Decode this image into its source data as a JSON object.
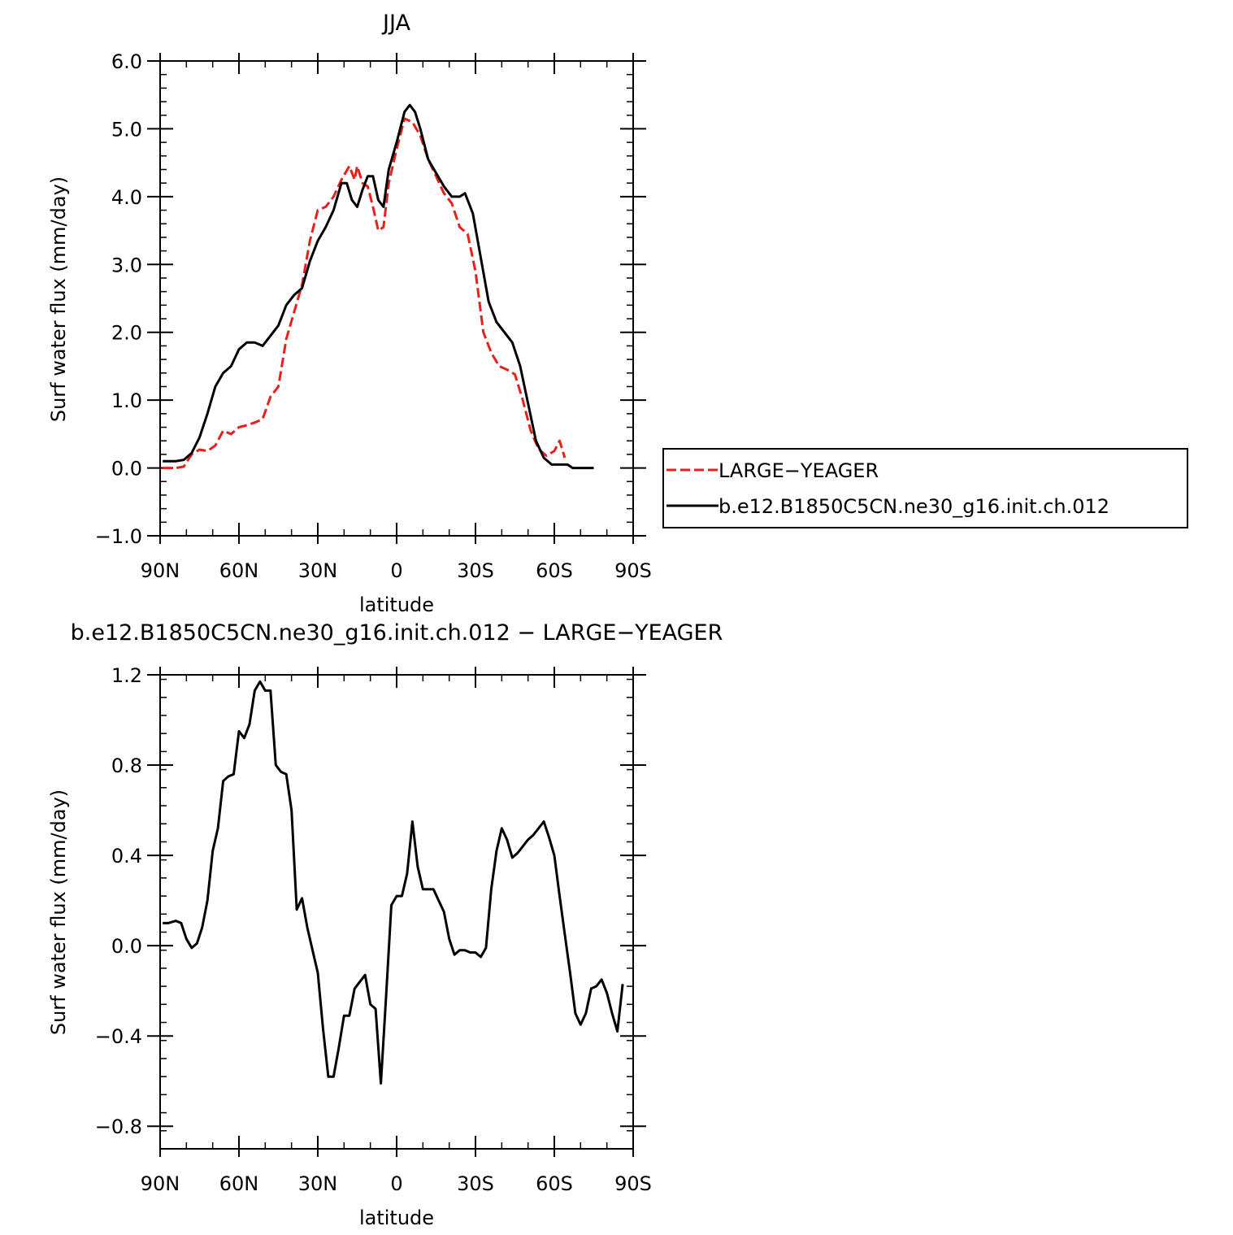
{
  "colors": {
    "red": "#e8201c",
    "black": "#000000"
  },
  "chart_data": [
    {
      "type": "line",
      "title": "JJA",
      "xlabel": "latitude",
      "ylabel": "Surf water flux (mm/day)",
      "xlim": [
        90,
        -90
      ],
      "ylim": [
        -1.0,
        6.0
      ],
      "x_ticks": [
        {
          "value": 90,
          "label": "90N"
        },
        {
          "value": 60,
          "label": "60N"
        },
        {
          "value": 30,
          "label": "30N"
        },
        {
          "value": 0,
          "label": "0"
        },
        {
          "value": -30,
          "label": "30S"
        },
        {
          "value": -60,
          "label": "60S"
        },
        {
          "value": -90,
          "label": "90S"
        }
      ],
      "y_ticks": [
        {
          "value": -1.0,
          "label": "−1.0"
        },
        {
          "value": 0.0,
          "label": "0.0"
        },
        {
          "value": 1.0,
          "label": "1.0"
        },
        {
          "value": 2.0,
          "label": "2.0"
        },
        {
          "value": 3.0,
          "label": "3.0"
        },
        {
          "value": 4.0,
          "label": "4.0"
        },
        {
          "value": 5.0,
          "label": "5.0"
        },
        {
          "value": 6.0,
          "label": "6.0"
        }
      ],
      "legend": "right",
      "series": [
        {
          "name": "LARGE−YEAGER",
          "color": "#e8201c",
          "style": "dashed",
          "points": [
            [
              89,
              0.0
            ],
            [
              84,
              0.0
            ],
            [
              81,
              0.02
            ],
            [
              78,
              0.2
            ],
            [
              75,
              0.27
            ],
            [
              72,
              0.25
            ],
            [
              69,
              0.33
            ],
            [
              66,
              0.55
            ],
            [
              63,
              0.5
            ],
            [
              60,
              0.6
            ],
            [
              57,
              0.63
            ],
            [
              54,
              0.67
            ],
            [
              51,
              0.72
            ],
            [
              48,
              1.05
            ],
            [
              45,
              1.2
            ],
            [
              42,
              1.9
            ],
            [
              39,
              2.3
            ],
            [
              36,
              2.7
            ],
            [
              33,
              3.35
            ],
            [
              30,
              3.8
            ],
            [
              27,
              3.85
            ],
            [
              24,
              4.0
            ],
            [
              21,
              4.25
            ],
            [
              18,
              4.45
            ],
            [
              16,
              4.25
            ],
            [
              15,
              4.45
            ],
            [
              13,
              4.2
            ],
            [
              11,
              4.15
            ],
            [
              9,
              3.85
            ],
            [
              7,
              3.5
            ],
            [
              5,
              3.55
            ],
            [
              3,
              4.2
            ],
            [
              0,
              4.7
            ],
            [
              -3,
              5.15
            ],
            [
              -6,
              5.1
            ],
            [
              -9,
              4.9
            ],
            [
              -12,
              4.55
            ],
            [
              -15,
              4.3
            ],
            [
              -18,
              4.05
            ],
            [
              -21,
              3.9
            ],
            [
              -24,
              3.55
            ],
            [
              -27,
              3.45
            ],
            [
              -30,
              2.9
            ],
            [
              -33,
              2.0
            ],
            [
              -36,
              1.7
            ],
            [
              -39,
              1.5
            ],
            [
              -42,
              1.45
            ],
            [
              -45,
              1.38
            ],
            [
              -48,
              1.0
            ],
            [
              -51,
              0.55
            ],
            [
              -54,
              0.28
            ],
            [
              -57,
              0.18
            ],
            [
              -60,
              0.25
            ],
            [
              -62,
              0.4
            ],
            [
              -64,
              0.15
            ]
          ]
        },
        {
          "name": "b.e12.B1850C5CN.ne30_g16.init.ch.012",
          "color": "#000000",
          "style": "solid",
          "points": [
            [
              89,
              0.1
            ],
            [
              84,
              0.1
            ],
            [
              81,
              0.12
            ],
            [
              78,
              0.22
            ],
            [
              75,
              0.45
            ],
            [
              72,
              0.8
            ],
            [
              69,
              1.2
            ],
            [
              66,
              1.4
            ],
            [
              63,
              1.5
            ],
            [
              60,
              1.75
            ],
            [
              57,
              1.85
            ],
            [
              54,
              1.85
            ],
            [
              51,
              1.8
            ],
            [
              48,
              1.95
            ],
            [
              45,
              2.1
            ],
            [
              42,
              2.4
            ],
            [
              39,
              2.55
            ],
            [
              36,
              2.65
            ],
            [
              33,
              3.05
            ],
            [
              30,
              3.35
            ],
            [
              27,
              3.55
            ],
            [
              24,
              3.8
            ],
            [
              21,
              4.2
            ],
            [
              19,
              4.2
            ],
            [
              17,
              3.95
            ],
            [
              15,
              3.85
            ],
            [
              13,
              4.1
            ],
            [
              11,
              4.3
            ],
            [
              9,
              4.3
            ],
            [
              7,
              3.95
            ],
            [
              5,
              3.85
            ],
            [
              3,
              4.4
            ],
            [
              0,
              4.8
            ],
            [
              -3,
              5.25
            ],
            [
              -5,
              5.35
            ],
            [
              -7,
              5.25
            ],
            [
              -9,
              5.0
            ],
            [
              -12,
              4.55
            ],
            [
              -15,
              4.35
            ],
            [
              -18,
              4.15
            ],
            [
              -21,
              4.0
            ],
            [
              -24,
              4.0
            ],
            [
              -26,
              4.05
            ],
            [
              -29,
              3.75
            ],
            [
              -32,
              3.1
            ],
            [
              -35,
              2.45
            ],
            [
              -38,
              2.15
            ],
            [
              -41,
              2.0
            ],
            [
              -44,
              1.85
            ],
            [
              -47,
              1.5
            ],
            [
              -50,
              0.95
            ],
            [
              -53,
              0.4
            ],
            [
              -56,
              0.15
            ],
            [
              -59,
              0.05
            ],
            [
              -62,
              0.05
            ],
            [
              -65,
              0.05
            ],
            [
              -67,
              0.0
            ],
            [
              -70,
              0.0
            ],
            [
              -73,
              0.0
            ],
            [
              -75,
              0.0
            ]
          ]
        }
      ]
    },
    {
      "type": "line",
      "title": "b.e12.B1850C5CN.ne30_g16.init.ch.012 − LARGE−YEAGER",
      "xlabel": "latitude",
      "ylabel": "Surf water flux (mm/day)",
      "xlim": [
        90,
        -90
      ],
      "ylim": [
        -0.9,
        1.2
      ],
      "x_ticks": [
        {
          "value": 90,
          "label": "90N"
        },
        {
          "value": 60,
          "label": "60N"
        },
        {
          "value": 30,
          "label": "30N"
        },
        {
          "value": 0,
          "label": "0"
        },
        {
          "value": -30,
          "label": "30S"
        },
        {
          "value": -60,
          "label": "60S"
        },
        {
          "value": -90,
          "label": "90S"
        }
      ],
      "y_ticks": [
        {
          "value": -0.8,
          "label": "−0.8"
        },
        {
          "value": -0.4,
          "label": "−0.4"
        },
        {
          "value": 0.0,
          "label": "0.0"
        },
        {
          "value": 0.4,
          "label": "0.4"
        },
        {
          "value": 0.8,
          "label": "0.8"
        },
        {
          "value": 1.2,
          "label": "1.2"
        }
      ],
      "series": [
        {
          "color": "#000000",
          "style": "solid",
          "points": [
            [
              89,
              0.1
            ],
            [
              87,
              0.1
            ],
            [
              84,
              0.11
            ],
            [
              82,
              0.1
            ],
            [
              80,
              0.03
            ],
            [
              78,
              -0.01
            ],
            [
              76,
              0.01
            ],
            [
              74,
              0.08
            ],
            [
              72,
              0.2
            ],
            [
              70,
              0.42
            ],
            [
              68,
              0.52
            ],
            [
              66,
              0.73
            ],
            [
              64,
              0.75
            ],
            [
              62,
              0.76
            ],
            [
              60,
              0.95
            ],
            [
              58,
              0.92
            ],
            [
              56,
              0.98
            ],
            [
              54,
              1.13
            ],
            [
              52,
              1.17
            ],
            [
              50,
              1.13
            ],
            [
              48,
              1.13
            ],
            [
              46,
              0.8
            ],
            [
              44,
              0.77
            ],
            [
              42,
              0.76
            ],
            [
              40,
              0.6
            ],
            [
              38,
              0.16
            ],
            [
              36,
              0.21
            ],
            [
              34,
              0.08
            ],
            [
              32,
              -0.02
            ],
            [
              30,
              -0.12
            ],
            [
              28,
              -0.37
            ],
            [
              26,
              -0.58
            ],
            [
              24,
              -0.58
            ],
            [
              22,
              -0.45
            ],
            [
              20,
              -0.31
            ],
            [
              18,
              -0.31
            ],
            [
              16,
              -0.19
            ],
            [
              14,
              -0.16
            ],
            [
              12,
              -0.13
            ],
            [
              10,
              -0.26
            ],
            [
              8,
              -0.28
            ],
            [
              6,
              -0.61
            ],
            [
              4,
              -0.22
            ],
            [
              2,
              0.18
            ],
            [
              0,
              0.22
            ],
            [
              -2,
              0.22
            ],
            [
              -4,
              0.32
            ],
            [
              -6,
              0.55
            ],
            [
              -8,
              0.35
            ],
            [
              -10,
              0.25
            ],
            [
              -12,
              0.25
            ],
            [
              -14,
              0.25
            ],
            [
              -16,
              0.2
            ],
            [
              -18,
              0.15
            ],
            [
              -20,
              0.03
            ],
            [
              -22,
              -0.04
            ],
            [
              -24,
              -0.02
            ],
            [
              -26,
              -0.02
            ],
            [
              -28,
              -0.03
            ],
            [
              -30,
              -0.03
            ],
            [
              -32,
              -0.05
            ],
            [
              -34,
              -0.01
            ],
            [
              -36,
              0.25
            ],
            [
              -38,
              0.42
            ],
            [
              -40,
              0.52
            ],
            [
              -42,
              0.47
            ],
            [
              -44,
              0.39
            ],
            [
              -46,
              0.41
            ],
            [
              -48,
              0.44
            ],
            [
              -50,
              0.47
            ],
            [
              -52,
              0.49
            ],
            [
              -54,
              0.52
            ],
            [
              -56,
              0.55
            ],
            [
              -58,
              0.48
            ],
            [
              -60,
              0.4
            ],
            [
              -62,
              0.22
            ],
            [
              -64,
              0.05
            ],
            [
              -66,
              -0.12
            ],
            [
              -68,
              -0.3
            ],
            [
              -70,
              -0.35
            ],
            [
              -72,
              -0.3
            ],
            [
              -74,
              -0.19
            ],
            [
              -76,
              -0.18
            ],
            [
              -78,
              -0.15
            ],
            [
              -80,
              -0.21
            ],
            [
              -82,
              -0.3
            ],
            [
              -84,
              -0.38
            ],
            [
              -86,
              -0.17
            ]
          ]
        }
      ]
    }
  ]
}
